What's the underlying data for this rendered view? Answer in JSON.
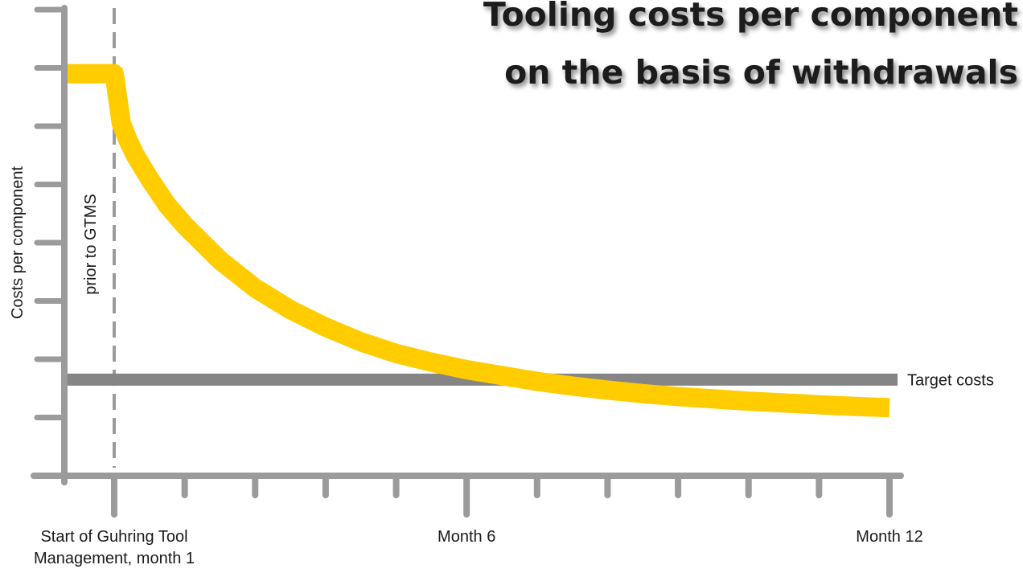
{
  "chart_data": {
    "type": "line",
    "title": "Tooling costs per component on the basis of withdrawals",
    "title_lines": [
      "Tooling costs per component",
      "on the basis of withdrawals"
    ],
    "ylabel": "Costs per component",
    "x_tick_labels": [
      {
        "month": 1,
        "lines": [
          "Start of Guhring Tool",
          "Management, month 1"
        ]
      },
      {
        "month": 6,
        "lines": [
          "Month 6"
        ]
      },
      {
        "month": 12,
        "lines": [
          "Month 12"
        ]
      }
    ],
    "xlim": [
      0.3,
      12
    ],
    "ylim": [
      0,
      8
    ],
    "y_tick_count": 8,
    "annotation": {
      "text": "prior to GTMS",
      "month": 1
    },
    "series": [
      {
        "x": [
          0.3,
          1.0,
          1.1,
          1.2,
          1.3,
          1.5,
          1.75,
          2.0,
          2.5,
          3.0,
          3.5,
          4.0,
          4.5,
          5.0,
          5.5,
          6.0,
          6.5,
          7.0,
          7.5,
          8.0,
          8.5,
          9.0,
          9.5,
          10.0,
          10.5,
          11.0,
          11.5,
          12.0
        ],
        "y": [
          6.9,
          6.9,
          6.05,
          5.75,
          5.5,
          5.1,
          4.65,
          4.3,
          3.7,
          3.22,
          2.85,
          2.55,
          2.3,
          2.1,
          1.95,
          1.82,
          1.72,
          1.62,
          1.54,
          1.47,
          1.41,
          1.36,
          1.32,
          1.28,
          1.25,
          1.22,
          1.19,
          1.17
        ],
        "color": "#FFCC00"
      }
    ],
    "reference_line": {
      "label": "Target costs",
      "y": 1.65,
      "color": "#858585"
    },
    "axis_color": "#9b9b9b",
    "grid": false
  }
}
